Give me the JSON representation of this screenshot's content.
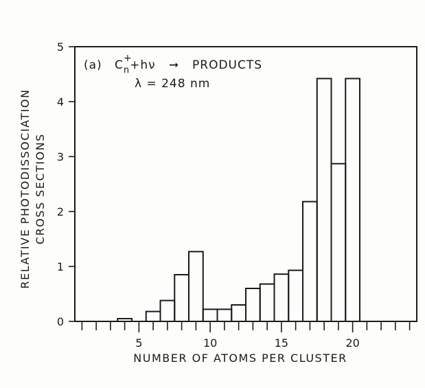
{
  "chart_data": {
    "type": "bar",
    "annotation_label": "(a)",
    "reaction_species": "C",
    "reaction_superscript": "+",
    "reaction_subscript": "n",
    "reaction_rest": "+hν",
    "reaction_arrow": "➞",
    "reaction_products": "PRODUCTS",
    "wavelength": "λ = 248 nm",
    "xlabel": "NUMBER OF ATOMS PER CLUSTER",
    "ylabel_line1": "RELATIVE PHOTODISSOCIATION",
    "ylabel_line2": "CROSS SECTIONS",
    "xlim": [
      0.5,
      24.5
    ],
    "ylim": [
      0,
      5
    ],
    "x_ticks": [
      5,
      10,
      15,
      20
    ],
    "x_tick_labels": [
      "5",
      "10",
      "15",
      "20"
    ],
    "x_minor_ticks": [
      1,
      2,
      3,
      4,
      5,
      6,
      7,
      8,
      9,
      10,
      11,
      12,
      13,
      14,
      15,
      16,
      17,
      18,
      19,
      20,
      21,
      22,
      23,
      24
    ],
    "y_ticks": [
      0,
      1,
      2,
      3,
      4,
      5
    ],
    "y_tick_labels": [
      "0",
      "1",
      "2",
      "3",
      "4",
      "5"
    ],
    "x": [
      4,
      6,
      7,
      8,
      9,
      10,
      11,
      12,
      13,
      14,
      15,
      16,
      17,
      18,
      19,
      20
    ],
    "values": [
      0.05,
      0.18,
      0.38,
      0.85,
      1.27,
      0.22,
      0.22,
      0.3,
      0.6,
      0.68,
      0.86,
      0.93,
      2.18,
      4.42,
      2.87,
      4.42
    ],
    "grid": false,
    "legend": "none"
  }
}
